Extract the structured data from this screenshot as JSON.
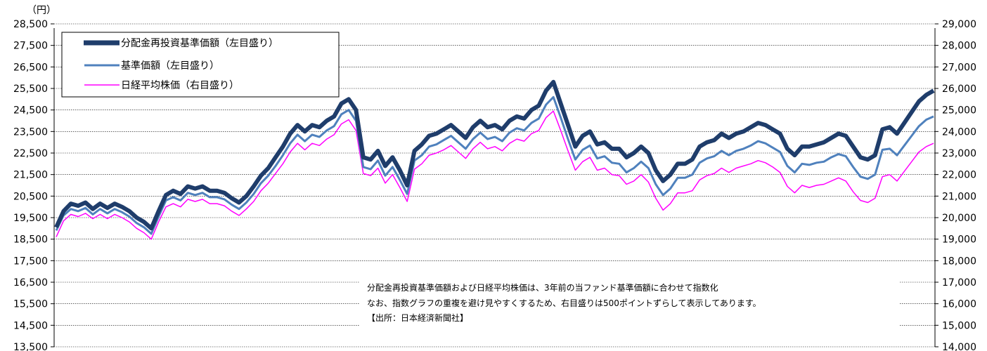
{
  "chart_data": {
    "type": "line",
    "unit_label": "（円）",
    "y_left": {
      "range": [
        13500,
        28500
      ],
      "ticks": [
        "13,500",
        "14,500",
        "15,500",
        "16,500",
        "17,500",
        "18,500",
        "19,500",
        "20,500",
        "21,500",
        "22,500",
        "23,500",
        "24,500",
        "25,500",
        "26,500",
        "27,500",
        "28,500"
      ]
    },
    "y_right": {
      "range": [
        14000,
        29000
      ],
      "ticks": [
        "14,000",
        "15,000",
        "16,000",
        "17,000",
        "18,000",
        "19,000",
        "20,000",
        "21,000",
        "22,000",
        "23,000",
        "24,000",
        "25,000",
        "26,000",
        "27,000",
        "28,000",
        "29,000"
      ]
    },
    "grid": true,
    "legend_position": "top-left",
    "series": [
      {
        "name": "分配金再投資基準価額（左目盛り）",
        "axis": "left",
        "color": "#1f3d6b",
        "values": [
          19050,
          19800,
          20150,
          20050,
          20200,
          19900,
          20150,
          19950,
          20150,
          20000,
          19800,
          19500,
          19300,
          19000,
          19800,
          20550,
          20750,
          20600,
          20950,
          20850,
          20950,
          20750,
          20750,
          20650,
          20400,
          20200,
          20500,
          20950,
          21450,
          21800,
          22300,
          22800,
          23400,
          23800,
          23500,
          23800,
          23700,
          24000,
          24200,
          24800,
          25000,
          24500,
          22300,
          22200,
          22600,
          21900,
          22300,
          21700,
          21000,
          22600,
          22900,
          23300,
          23400,
          23600,
          23800,
          23500,
          23200,
          23700,
          24000,
          23700,
          23800,
          23600,
          24000,
          24200,
          24100,
          24500,
          24700,
          25400,
          25800,
          24800,
          23800,
          22800,
          23300,
          23500,
          22900,
          23000,
          22700,
          22700,
          22300,
          22500,
          22800,
          22500,
          21700,
          21200,
          21500,
          22000,
          22000,
          22200,
          22800,
          23000,
          23100,
          23400,
          23200,
          23400,
          23500,
          23700,
          23900,
          23800,
          23600,
          23400,
          22700,
          22400,
          22800,
          22800,
          22900,
          23000,
          23200,
          23400,
          23300,
          22800,
          22300,
          22200,
          22400,
          23600,
          23700,
          23400,
          23900,
          24400,
          24900,
          25200,
          25400
        ]
      },
      {
        "name": "基準価額（左目盛り）",
        "axis": "left",
        "color": "#4f81bd",
        "values": [
          18900,
          19600,
          19900,
          19800,
          19950,
          19650,
          19900,
          19700,
          19900,
          19750,
          19550,
          19250,
          19050,
          18750,
          19550,
          20300,
          20450,
          20300,
          20650,
          20550,
          20650,
          20450,
          20450,
          20350,
          20100,
          19900,
          20200,
          20600,
          21100,
          21450,
          21900,
          22400,
          22950,
          23350,
          23050,
          23350,
          23250,
          23550,
          23750,
          24300,
          24500,
          24000,
          21850,
          21750,
          22150,
          21450,
          21850,
          21250,
          20600,
          22150,
          22400,
          22800,
          22900,
          23100,
          23300,
          23000,
          22700,
          23150,
          23450,
          23150,
          23250,
          23050,
          23450,
          23650,
          23550,
          23900,
          24100,
          24750,
          25100,
          24150,
          23150,
          22200,
          22650,
          22850,
          22250,
          22350,
          22050,
          22000,
          21600,
          21800,
          22100,
          21800,
          21050,
          20550,
          20850,
          21350,
          21350,
          21500,
          22050,
          22250,
          22350,
          22600,
          22400,
          22600,
          22700,
          22850,
          23050,
          22950,
          22750,
          22550,
          21900,
          21600,
          22000,
          21950,
          22050,
          22100,
          22300,
          22450,
          22350,
          21850,
          21400,
          21300,
          21500,
          22650,
          22700,
          22400,
          22850,
          23300,
          23750,
          24050,
          24200
        ]
      },
      {
        "name": "日経平均株価（右目盛り）",
        "axis": "right",
        "color": "#ff00ff",
        "values": [
          19100,
          19850,
          20150,
          20050,
          20200,
          19950,
          20150,
          19950,
          20150,
          20000,
          19800,
          19500,
          19300,
          19000,
          19800,
          20500,
          20650,
          20500,
          20850,
          20750,
          20850,
          20650,
          20650,
          20550,
          20300,
          20100,
          20400,
          20750,
          21250,
          21600,
          22050,
          22500,
          23050,
          23450,
          23150,
          23450,
          23350,
          23650,
          23850,
          24350,
          24550,
          24050,
          22050,
          21950,
          22300,
          21600,
          22000,
          21400,
          20750,
          22250,
          22500,
          22900,
          23000,
          23150,
          23350,
          23050,
          22750,
          23200,
          23500,
          23200,
          23300,
          23100,
          23450,
          23650,
          23550,
          23900,
          24050,
          24650,
          24950,
          24050,
          23100,
          22200,
          22600,
          22800,
          22200,
          22300,
          22000,
          21950,
          21550,
          21700,
          22000,
          21650,
          20900,
          20350,
          20650,
          21150,
          21150,
          21250,
          21750,
          21950,
          22050,
          22300,
          22100,
          22300,
          22400,
          22500,
          22650,
          22550,
          22350,
          22100,
          21450,
          21150,
          21500,
          21400,
          21500,
          21550,
          21700,
          21850,
          21700,
          21200,
          20800,
          20700,
          20900,
          21900,
          22000,
          21700,
          22150,
          22600,
          23050,
          23300,
          23450
        ]
      }
    ]
  },
  "note": {
    "line1": "分配金再投資基準価額および日経平均株価は、3年前の当ファンド基準価額に合わせて指数化",
    "line2": "なお、指数グラフの重複を避け見やすくするため、右目盛りは500ポイントずらして表示してあります。",
    "line3": "【出所：日本経済新聞社】"
  }
}
